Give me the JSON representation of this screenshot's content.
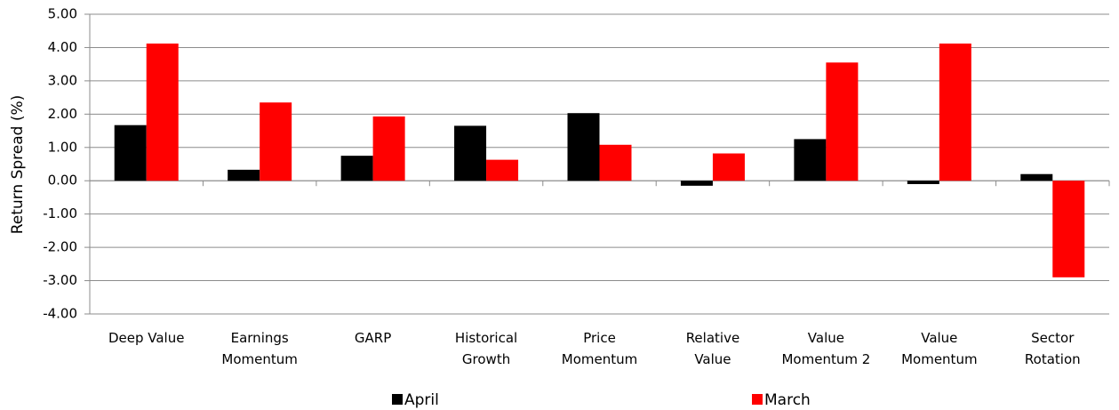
{
  "chart_data": {
    "type": "bar",
    "y_label": "Return Spread (%)",
    "categories": [
      "Deep Value",
      "Earnings\nMomentum",
      "GARP",
      "Historical\nGrowth",
      "Price\nMomentum",
      "Relative\nValue",
      "Value\nMomentum 2",
      "Value\nMomentum",
      "Sector\nRotation"
    ],
    "series": [
      {
        "name": "April",
        "color": "#000000",
        "values": [
          1.67,
          0.33,
          0.75,
          1.65,
          2.03,
          -0.15,
          1.25,
          -0.1,
          0.2
        ]
      },
      {
        "name": "March",
        "color": "#ff0000",
        "values": [
          4.12,
          2.35,
          1.93,
          0.63,
          1.08,
          0.82,
          3.55,
          4.12,
          -2.9
        ]
      }
    ],
    "ylim": [
      -4,
      5
    ],
    "yticks": [
      {
        "value": -4,
        "label": "-4.00"
      },
      {
        "value": -3,
        "label": "-3.00"
      },
      {
        "value": -2,
        "label": "-2.00"
      },
      {
        "value": -1,
        "label": "-1.00"
      },
      {
        "value": 0,
        "label": "0.00"
      },
      {
        "value": 1,
        "label": "1.00"
      },
      {
        "value": 2,
        "label": "2.00"
      },
      {
        "value": 3,
        "label": "3.00"
      },
      {
        "value": 4,
        "label": "4.00"
      },
      {
        "value": 5,
        "label": "5.00"
      }
    ],
    "grid": true,
    "legend": "bottom"
  }
}
